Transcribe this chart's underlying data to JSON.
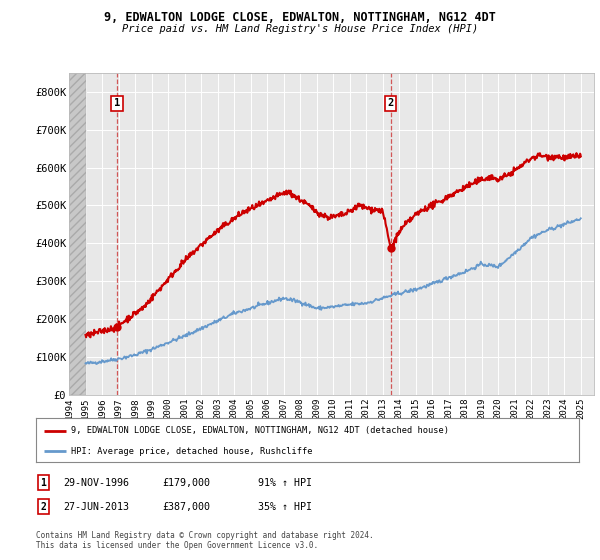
{
  "title_line1": "9, EDWALTON LODGE CLOSE, EDWALTON, NOTTINGHAM, NG12 4DT",
  "title_line2": "Price paid vs. HM Land Registry's House Price Index (HPI)",
  "bg_color": "#ffffff",
  "plot_bg_color": "#e8e8e8",
  "grid_color": "#ffffff",
  "red_color": "#cc0000",
  "blue_color": "#6699cc",
  "sale_box_edge": "#cc0000",
  "xmin": 1994.0,
  "xmax": 2025.8,
  "ymin": 0,
  "ymax": 850000,
  "yticks": [
    0,
    100000,
    200000,
    300000,
    400000,
    500000,
    600000,
    700000,
    800000
  ],
  "ytick_labels": [
    "£0",
    "£100K",
    "£200K",
    "£300K",
    "£400K",
    "£500K",
    "£600K",
    "£700K",
    "£800K"
  ],
  "xticks": [
    1994,
    1995,
    1996,
    1997,
    1998,
    1999,
    2000,
    2001,
    2002,
    2003,
    2004,
    2005,
    2006,
    2007,
    2008,
    2009,
    2010,
    2011,
    2012,
    2013,
    2014,
    2015,
    2016,
    2017,
    2018,
    2019,
    2020,
    2021,
    2022,
    2023,
    2024,
    2025
  ],
  "hatch_end": 1995.0,
  "sale1_x": 1996.91,
  "sale1_y": 179000,
  "sale1_label": "1",
  "sale2_x": 2013.49,
  "sale2_y": 387000,
  "sale2_label": "2",
  "legend_red_label": "9, EDWALTON LODGE CLOSE, EDWALTON, NOTTINGHAM, NG12 4DT (detached house)",
  "legend_blue_label": "HPI: Average price, detached house, Rushcliffe",
  "fn1_date": "29-NOV-1996",
  "fn1_price": "£179,000",
  "fn1_hpi": "91% ↑ HPI",
  "fn2_date": "27-JUN-2013",
  "fn2_price": "£387,000",
  "fn2_hpi": "35% ↑ HPI",
  "copyright": "Contains HM Land Registry data © Crown copyright and database right 2024.\nThis data is licensed under the Open Government Licence v3.0."
}
